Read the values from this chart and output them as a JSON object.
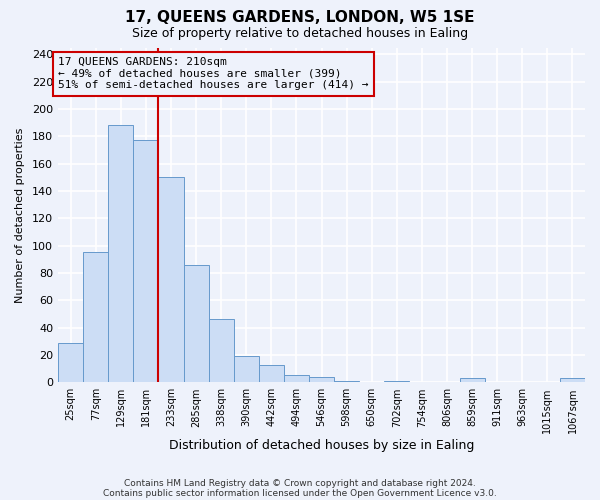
{
  "title": "17, QUEENS GARDENS, LONDON, W5 1SE",
  "subtitle": "Size of property relative to detached houses in Ealing",
  "xlabel": "Distribution of detached houses by size in Ealing",
  "ylabel": "Number of detached properties",
  "bar_labels": [
    "25sqm",
    "77sqm",
    "129sqm",
    "181sqm",
    "233sqm",
    "285sqm",
    "338sqm",
    "390sqm",
    "442sqm",
    "494sqm",
    "546sqm",
    "598sqm",
    "650sqm",
    "702sqm",
    "754sqm",
    "806sqm",
    "859sqm",
    "911sqm",
    "963sqm",
    "1015sqm",
    "1067sqm"
  ],
  "bar_values": [
    29,
    95,
    188,
    177,
    150,
    86,
    46,
    19,
    13,
    5,
    4,
    1,
    0,
    1,
    0,
    0,
    3,
    0,
    0,
    0,
    3
  ],
  "bar_color": "#ccddf5",
  "bar_edge_color": "#6699cc",
  "ylim": [
    0,
    245
  ],
  "yticks": [
    0,
    20,
    40,
    60,
    80,
    100,
    120,
    140,
    160,
    180,
    200,
    220,
    240
  ],
  "vline_x": 3.5,
  "vline_color": "#cc0000",
  "annotation_line0": "17 QUEENS GARDENS: 210sqm",
  "annotation_line1": "← 49% of detached houses are smaller (399)",
  "annotation_line2": "51% of semi-detached houses are larger (414) →",
  "annotation_box_color": "#cc0000",
  "footer_line1": "Contains HM Land Registry data © Crown copyright and database right 2024.",
  "footer_line2": "Contains public sector information licensed under the Open Government Licence v3.0.",
  "background_color": "#eef2fb",
  "grid_color": "#ffffff",
  "title_fontsize": 11,
  "subtitle_fontsize": 9
}
